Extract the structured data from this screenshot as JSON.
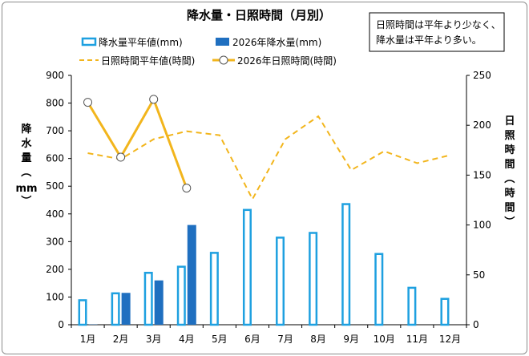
{
  "chart_data": {
    "type": "bar",
    "title": "降水量・日照時間（月別）",
    "note_lines": [
      "日照時間は平年より少なく、",
      "降水量は平年より多い。"
    ],
    "categories": [
      "1月",
      "2月",
      "3月",
      "4月",
      "5月",
      "6月",
      "7月",
      "8月",
      "9月",
      "10月",
      "11月",
      "12月"
    ],
    "ylabel_left_chars": [
      "降",
      "水",
      "量",
      "（",
      "mm",
      "）"
    ],
    "ylabel_right_chars": [
      "日",
      "照",
      "時",
      "間",
      "（",
      "時",
      "間",
      "）"
    ],
    "ylim_left": [
      0,
      900
    ],
    "ylim_right": [
      0,
      250
    ],
    "yticks_left": [
      "0",
      "100",
      "200",
      "300",
      "400",
      "500",
      "600",
      "700",
      "800",
      "900"
    ],
    "yticks_right": [
      "0",
      "50",
      "100",
      "150",
      "200",
      "250"
    ],
    "series": [
      {
        "name": "降水量平年値(mm)",
        "type": "bar",
        "axis": "left",
        "style": "outline",
        "color": "#1ea0e0",
        "values": [
          92,
          117,
          191,
          213,
          263,
          418,
          318,
          335,
          439,
          259,
          137,
          97
        ]
      },
      {
        "name": "2026年降水量(mm)",
        "type": "bar",
        "axis": "left",
        "style": "filled",
        "color": "#1f6fc0",
        "values": [
          1,
          115,
          160,
          360,
          null,
          null,
          null,
          null,
          null,
          null,
          null,
          null
        ]
      },
      {
        "name": "日照時間平年値(時間)",
        "type": "line",
        "axis": "right",
        "style": "dashed",
        "color": "#f2b51c",
        "values": [
          172,
          166,
          186,
          194,
          190,
          126,
          186,
          209,
          155,
          174,
          162,
          170
        ]
      },
      {
        "name": "2026年日照時間(時間)",
        "type": "line",
        "axis": "right",
        "style": "solid-marker",
        "color": "#f2b51c",
        "values": [
          223,
          168,
          226,
          137,
          null,
          null,
          null,
          null,
          null,
          null,
          null,
          null
        ]
      }
    ],
    "grid": false,
    "legend_position": "top"
  }
}
